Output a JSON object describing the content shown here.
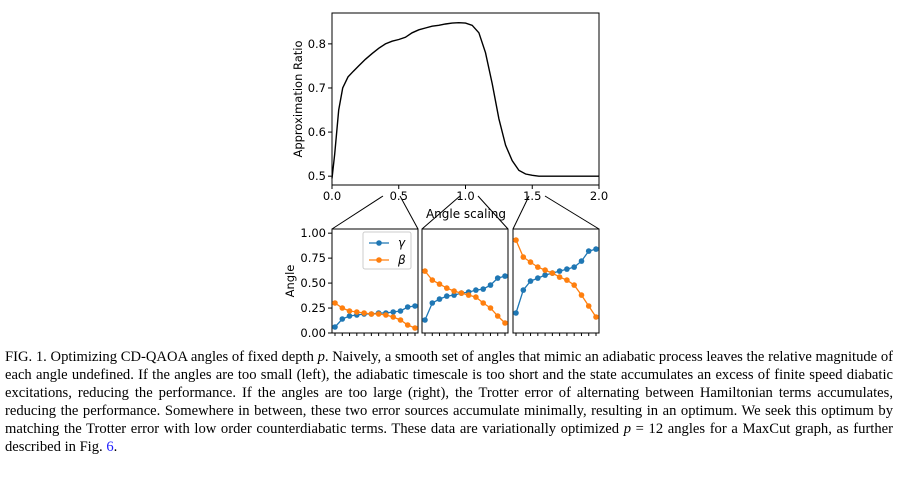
{
  "chart_data": [
    {
      "type": "line",
      "title": "",
      "xlabel": "Angle scaling",
      "ylabel": "Approximation Ratio",
      "xlim": [
        0.0,
        2.0
      ],
      "ylim": [
        0.48,
        0.87
      ],
      "xticks": [
        "0.0",
        "0.5",
        "1.0",
        "1.5",
        "2.0"
      ],
      "yticks": [
        "0.5",
        "0.6",
        "0.7",
        "0.8"
      ],
      "grid": false,
      "series": [
        {
          "name": "",
          "color": "#000000",
          "x": [
            0.0,
            0.02,
            0.05,
            0.08,
            0.12,
            0.16,
            0.2,
            0.25,
            0.3,
            0.35,
            0.4,
            0.45,
            0.5,
            0.55,
            0.6,
            0.65,
            0.7,
            0.75,
            0.8,
            0.85,
            0.9,
            0.95,
            1.0,
            1.05,
            1.1,
            1.15,
            1.2,
            1.25,
            1.3,
            1.35,
            1.4,
            1.45,
            1.5,
            1.55,
            1.6,
            1.7,
            1.8,
            1.9,
            2.0
          ],
          "y": [
            0.495,
            0.55,
            0.65,
            0.7,
            0.725,
            0.738,
            0.75,
            0.765,
            0.778,
            0.79,
            0.8,
            0.806,
            0.81,
            0.815,
            0.825,
            0.832,
            0.836,
            0.84,
            0.842,
            0.845,
            0.847,
            0.848,
            0.847,
            0.842,
            0.825,
            0.78,
            0.71,
            0.63,
            0.57,
            0.535,
            0.513,
            0.505,
            0.502,
            0.5,
            0.5,
            0.5,
            0.5,
            0.5,
            0.5
          ]
        }
      ]
    },
    {
      "type": "line",
      "xlabel": "",
      "ylabel": "Angle",
      "ylim": [
        0.0,
        1.0
      ],
      "yticks": [
        "0.00",
        "0.25",
        "0.50",
        "0.75",
        "1.00"
      ],
      "legend_position": "top-right",
      "series": [
        {
          "name": "γ",
          "color": "#1f77b4",
          "values": [
            0.06,
            0.14,
            0.17,
            0.18,
            0.19,
            0.19,
            0.2,
            0.2,
            0.21,
            0.22,
            0.26,
            0.27
          ]
        },
        {
          "name": "β",
          "color": "#ff7f0e",
          "values": [
            0.3,
            0.25,
            0.22,
            0.21,
            0.2,
            0.19,
            0.19,
            0.18,
            0.16,
            0.13,
            0.08,
            0.05
          ]
        }
      ]
    },
    {
      "type": "line",
      "ylim": [
        0.0,
        1.0
      ],
      "series": [
        {
          "name": "γ",
          "color": "#1f77b4",
          "values": [
            0.13,
            0.3,
            0.34,
            0.37,
            0.38,
            0.4,
            0.41,
            0.43,
            0.44,
            0.48,
            0.55,
            0.57
          ]
        },
        {
          "name": "β",
          "color": "#ff7f0e",
          "values": [
            0.62,
            0.53,
            0.49,
            0.45,
            0.42,
            0.4,
            0.38,
            0.36,
            0.3,
            0.25,
            0.17,
            0.1
          ]
        }
      ]
    },
    {
      "type": "line",
      "ylim": [
        0.0,
        1.0
      ],
      "series": [
        {
          "name": "γ",
          "color": "#1f77b4",
          "values": [
            0.2,
            0.43,
            0.52,
            0.55,
            0.58,
            0.6,
            0.62,
            0.64,
            0.66,
            0.72,
            0.82,
            0.84
          ]
        },
        {
          "name": "β",
          "color": "#ff7f0e",
          "values": [
            0.93,
            0.76,
            0.71,
            0.66,
            0.63,
            0.6,
            0.56,
            0.53,
            0.48,
            0.38,
            0.27,
            0.16
          ]
        }
      ]
    }
  ],
  "caption": {
    "label": "FIG. 1.",
    "segments": [
      "Optimizing CD-QAOA angles of fixed depth ",
      "p",
      ". Naively, a smooth set of angles that mimic an adiabatic process leaves the relative magnitude of each angle undefined. If the angles are too small (left), the adiabatic timescale is too short and the state accumulates an excess of finite speed diabatic excitations, reducing the performance. If the angles are too large (right), the Trotter error of alternating between Hamiltonian terms accumulates, reducing the performance. Somewhere in between, these two error sources accumulate minimally, resulting in an optimum. We seek this optimum by matching the Trotter error with low order counterdiabatic terms. These data are variationally optimized ",
      "p",
      " = 12 angles for a MaxCut graph, as further described in Fig. ",
      "6",
      "."
    ]
  }
}
